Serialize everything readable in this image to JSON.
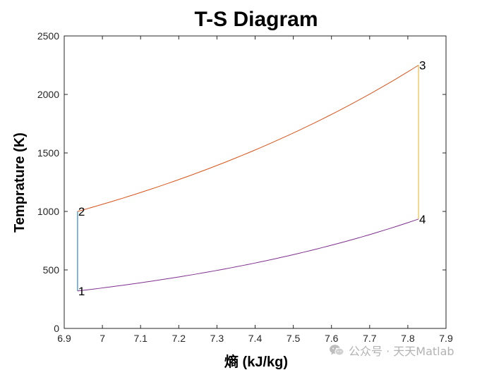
{
  "chart_data": {
    "type": "line",
    "title": "T-S Diagram",
    "xlabel": "熵 (kJ/kg)",
    "ylabel": "Temprature (K)",
    "xlim": [
      6.9,
      7.9
    ],
    "ylim": [
      0,
      2500
    ],
    "xticks": [
      6.9,
      7,
      7.1,
      7.2,
      7.3,
      7.4,
      7.5,
      7.6,
      7.7,
      7.8,
      7.9
    ],
    "xtick_labels": [
      "6.9",
      "7",
      "7.1",
      "7.2",
      "7.3",
      "7.4",
      "7.5",
      "7.6",
      "7.7",
      "7.8",
      "7.9"
    ],
    "yticks": [
      0,
      500,
      1000,
      1500,
      2000,
      2500
    ],
    "ytick_labels": [
      "0",
      "500",
      "1000",
      "1500",
      "2000",
      "2500"
    ],
    "grid": false,
    "legend": false,
    "series": [
      {
        "color": "#0072bd",
        "x": [
          6.935,
          6.935
        ],
        "y": [
          320,
          1000
        ],
        "curve": "straight"
      },
      {
        "color": "#d95319",
        "x": [
          6.935,
          7.828
        ],
        "y": [
          1000,
          2250
        ],
        "curve": "exp"
      },
      {
        "color": "#edb120",
        "x": [
          7.828,
          7.828
        ],
        "y": [
          2250,
          935
        ],
        "curve": "straight"
      },
      {
        "color": "#7e2f8e",
        "x": [
          7.828,
          6.935
        ],
        "y": [
          935,
          320
        ],
        "curve": "exp"
      }
    ],
    "point_labels": [
      {
        "text": "1",
        "x": 6.935,
        "y": 320
      },
      {
        "text": "2",
        "x": 6.935,
        "y": 1000
      },
      {
        "text": "3",
        "x": 7.828,
        "y": 2250
      },
      {
        "text": "4",
        "x": 7.828,
        "y": 935
      }
    ]
  },
  "watermark": {
    "text": "公众号 · 天天Matlab",
    "icon": "wechat-icon"
  }
}
